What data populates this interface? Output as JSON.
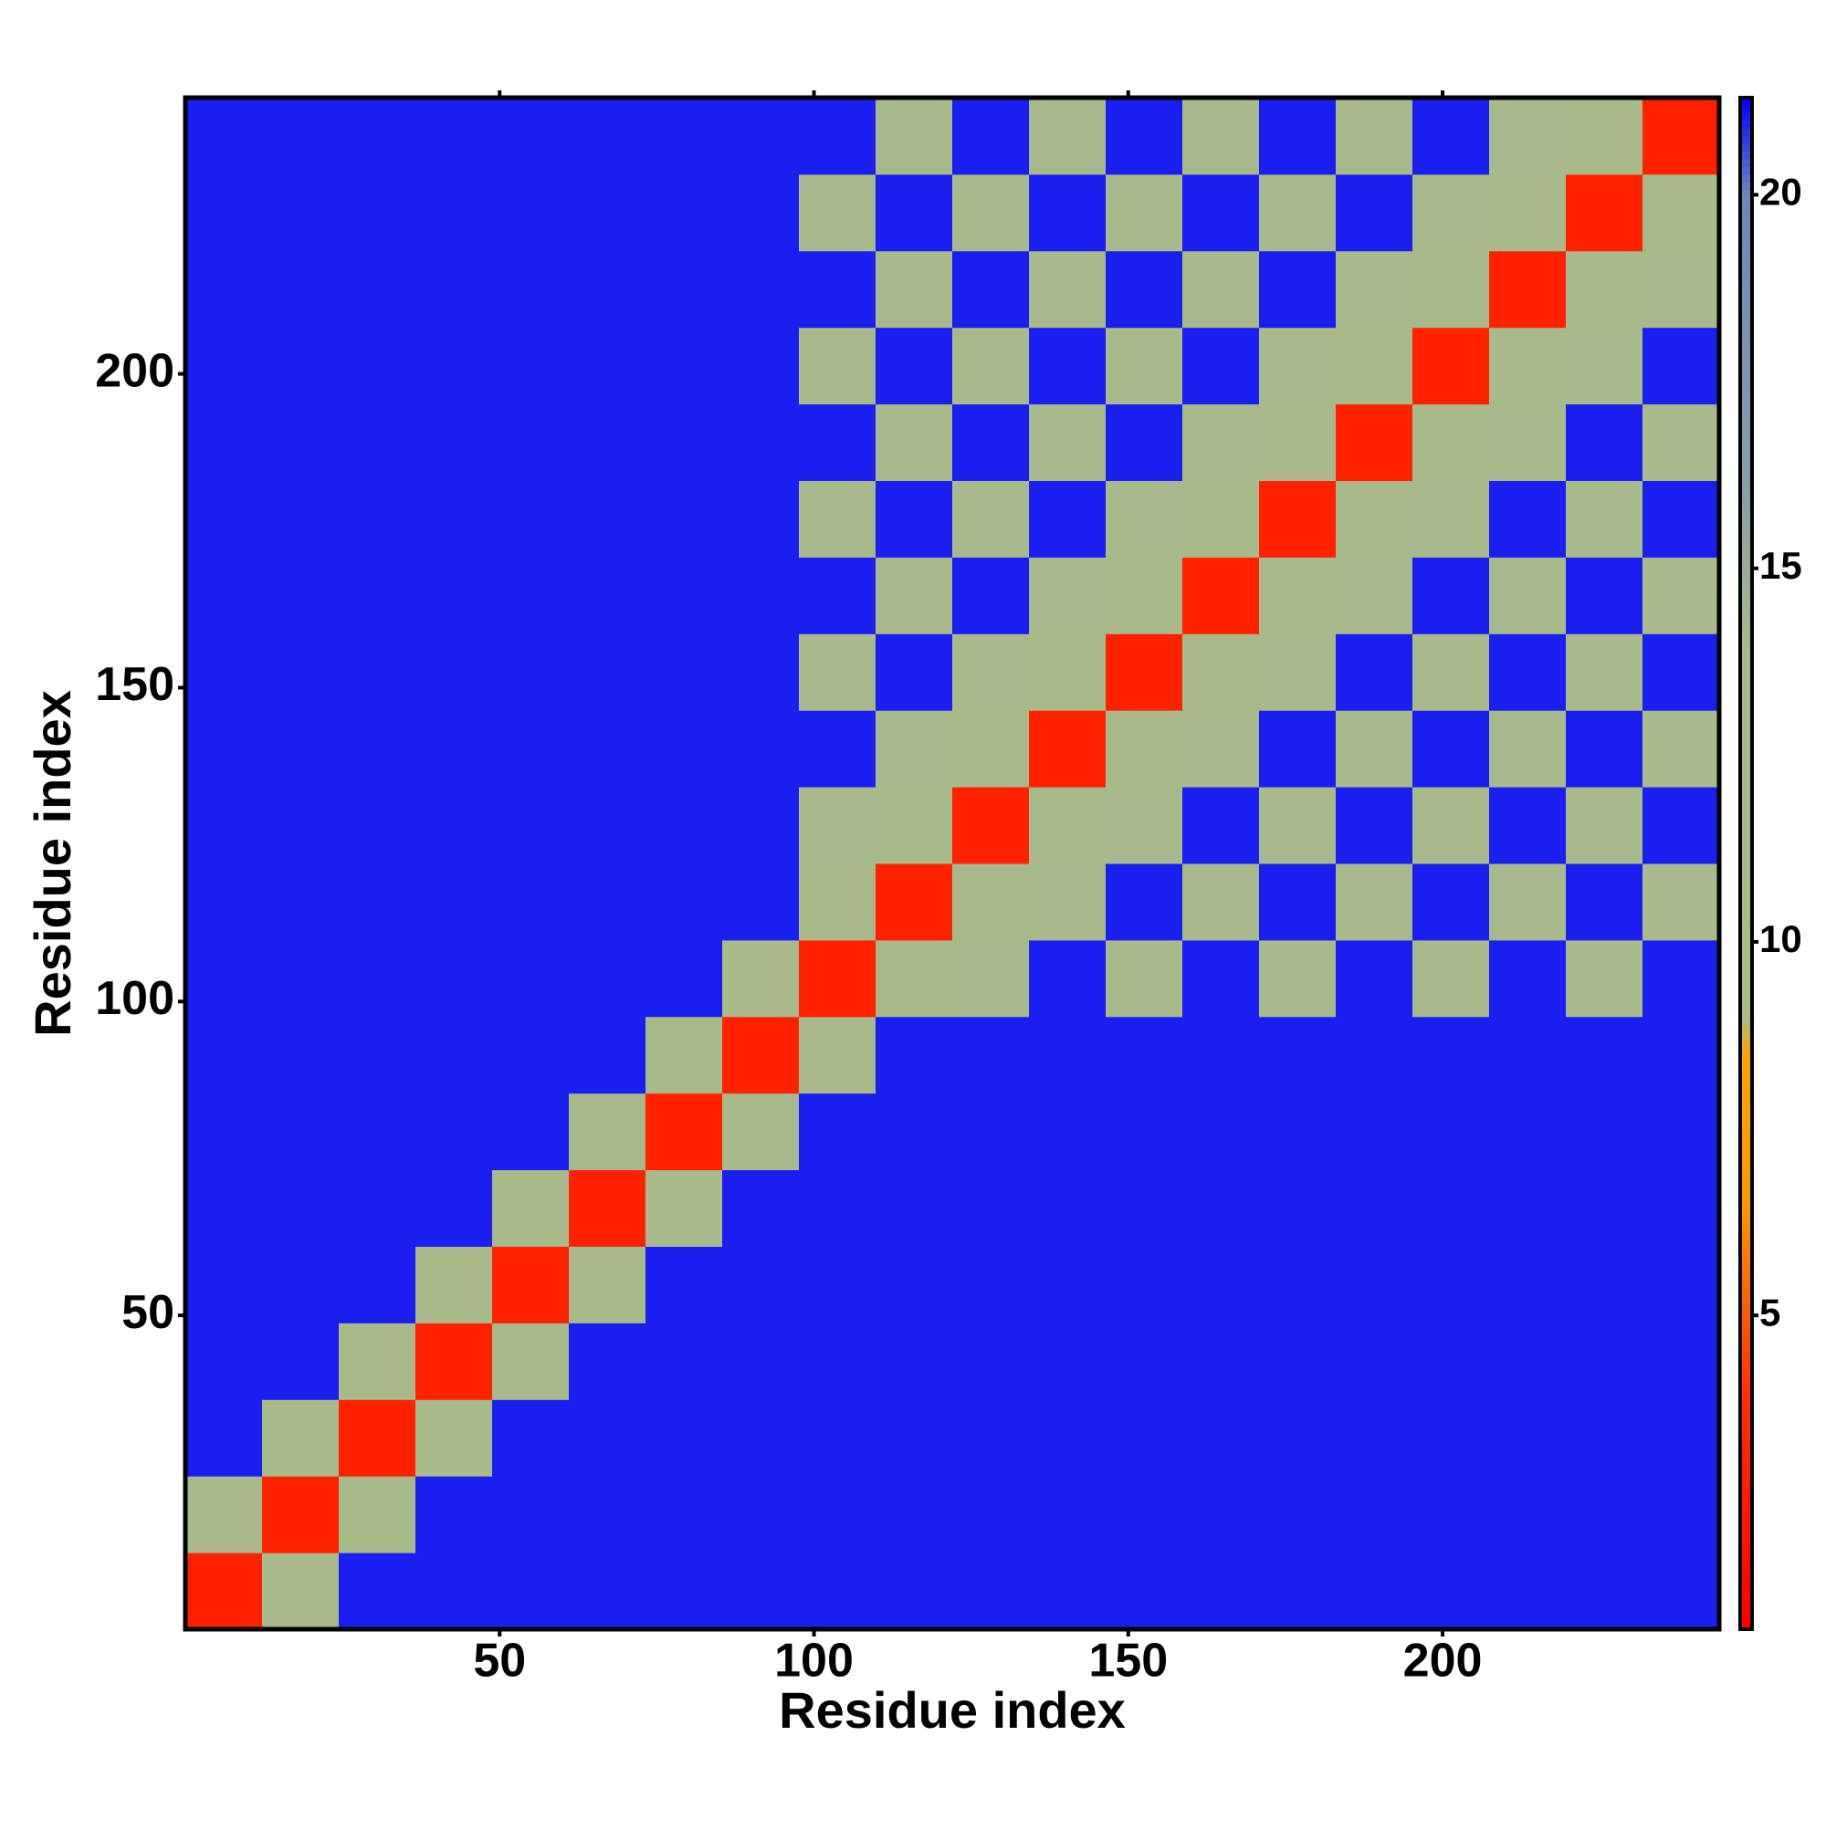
{
  "chart_data": {
    "type": "heatmap",
    "x_label": "Residue index",
    "y_label": "Residue index",
    "x_bins": [
      0,
      12.2,
      24.4,
      36.6,
      48.8,
      61,
      73.2,
      85.4,
      97.6,
      109.8,
      122,
      134.2,
      146.4,
      158.6,
      170.8,
      183,
      195.2,
      207.4,
      219.6,
      231.8,
      244
    ],
    "y_bins": [
      0,
      12.2,
      24.4,
      36.6,
      48.8,
      61,
      73.2,
      85.4,
      97.6,
      109.8,
      122,
      134.2,
      146.4,
      158.6,
      170.8,
      183,
      195.2,
      207.4,
      219.6,
      231.8,
      244
    ],
    "xlim": [
      0,
      244
    ],
    "ylim": [
      0,
      244
    ],
    "xticks": [
      50,
      100,
      150,
      200
    ],
    "yticks": [
      50,
      100,
      150,
      200
    ],
    "z": [
      [
        3,
        12,
        21,
        21,
        21,
        21,
        21,
        21,
        21,
        21,
        21,
        21,
        21,
        21,
        21,
        21,
        21,
        21,
        21,
        21
      ],
      [
        12,
        3,
        12,
        21,
        21,
        21,
        21,
        21,
        21,
        21,
        21,
        21,
        21,
        21,
        21,
        21,
        21,
        21,
        21,
        21
      ],
      [
        21,
        12,
        3,
        12,
        21,
        21,
        21,
        21,
        21,
        21,
        21,
        21,
        21,
        21,
        21,
        21,
        21,
        21,
        21,
        21
      ],
      [
        21,
        21,
        12,
        3,
        12,
        21,
        21,
        21,
        21,
        21,
        21,
        21,
        21,
        21,
        21,
        21,
        21,
        21,
        21,
        21
      ],
      [
        21,
        21,
        21,
        12,
        3,
        12,
        21,
        21,
        21,
        21,
        21,
        21,
        21,
        21,
        21,
        21,
        21,
        21,
        21,
        21
      ],
      [
        21,
        21,
        21,
        21,
        12,
        3,
        12,
        21,
        21,
        21,
        21,
        21,
        21,
        21,
        21,
        21,
        21,
        21,
        21,
        21
      ],
      [
        21,
        21,
        21,
        21,
        21,
        12,
        3,
        12,
        21,
        21,
        21,
        21,
        21,
        21,
        21,
        21,
        21,
        21,
        21,
        21
      ],
      [
        21,
        21,
        21,
        21,
        21,
        21,
        12,
        3,
        12,
        21,
        21,
        21,
        21,
        21,
        21,
        21,
        21,
        21,
        21,
        21
      ],
      [
        21,
        21,
        21,
        21,
        21,
        21,
        21,
        12,
        3,
        12,
        13,
        21,
        13,
        21,
        13,
        21,
        13,
        21,
        13,
        21
      ],
      [
        21,
        21,
        21,
        21,
        21,
        21,
        21,
        21,
        12,
        3,
        12,
        13,
        21,
        13,
        21,
        13,
        21,
        13,
        21,
        13
      ],
      [
        21,
        21,
        21,
        21,
        21,
        21,
        21,
        21,
        13,
        12,
        3,
        12,
        13,
        21,
        13,
        21,
        13,
        21,
        13,
        21
      ],
      [
        21,
        21,
        21,
        21,
        21,
        21,
        21,
        21,
        21,
        13,
        12,
        3,
        12,
        13,
        21,
        13,
        21,
        13,
        21,
        13
      ],
      [
        21,
        21,
        21,
        21,
        21,
        21,
        21,
        21,
        13,
        21,
        13,
        12,
        3,
        12,
        13,
        21,
        13,
        21,
        13,
        21
      ],
      [
        21,
        21,
        21,
        21,
        21,
        21,
        21,
        21,
        21,
        13,
        21,
        13,
        12,
        3,
        12,
        13,
        21,
        13,
        21,
        13
      ],
      [
        21,
        21,
        21,
        21,
        21,
        21,
        21,
        21,
        13,
        21,
        13,
        21,
        13,
        12,
        3,
        12,
        13,
        21,
        13,
        21
      ],
      [
        21,
        21,
        21,
        21,
        21,
        21,
        21,
        21,
        21,
        13,
        21,
        13,
        21,
        13,
        12,
        3,
        12,
        13,
        21,
        13
      ],
      [
        21,
        21,
        21,
        21,
        21,
        21,
        21,
        21,
        13,
        21,
        13,
        21,
        13,
        21,
        13,
        12,
        3,
        12,
        13,
        21
      ],
      [
        21,
        21,
        21,
        21,
        21,
        21,
        21,
        21,
        21,
        13,
        21,
        13,
        21,
        13,
        21,
        13,
        12,
        3,
        12,
        13
      ],
      [
        21,
        21,
        21,
        21,
        21,
        21,
        21,
        21,
        13,
        21,
        13,
        21,
        13,
        21,
        13,
        21,
        13,
        12,
        3,
        12
      ],
      [
        21,
        21,
        21,
        21,
        21,
        21,
        21,
        21,
        21,
        13,
        21,
        13,
        21,
        13,
        21,
        13,
        21,
        13,
        12,
        3
      ]
    ],
    "colorscale": [
      [
        0.8,
        "#ff0000"
      ],
      [
        4,
        "#ff3000"
      ],
      [
        6.5,
        "#ff9900"
      ],
      [
        8.5,
        "#ffa500"
      ],
      [
        9,
        "#a9bb88"
      ],
      [
        14,
        "#a8b98c"
      ],
      [
        16,
        "#8a9fa8"
      ],
      [
        20,
        "#6f86b8"
      ],
      [
        21.3,
        "#0000ff"
      ]
    ],
    "clim": [
      0.8,
      21.3
    ],
    "cticks": [
      5,
      10,
      15,
      20
    ]
  }
}
